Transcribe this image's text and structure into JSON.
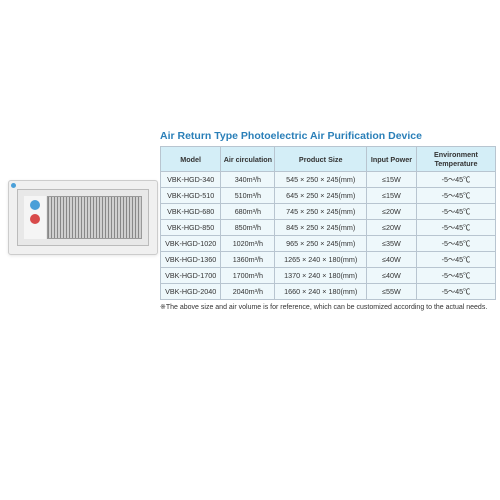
{
  "title": "Air Return Type Photoelectric Air Purification Device",
  "table": {
    "headers": {
      "model": "Model",
      "air": "Air circulation",
      "size": "Product Size",
      "power": "Input Power",
      "temp": "Environment Temperature"
    },
    "rows": [
      {
        "model": "VBK-HGD-340",
        "air": "340m³/h",
        "size": "545 × 250 × 245(mm)",
        "power": "≤15W",
        "temp": "-5～45℃"
      },
      {
        "model": "VBK-HGD-510",
        "air": "510m³/h",
        "size": "645 × 250 × 245(mm)",
        "power": "≤15W",
        "temp": "-5～45℃"
      },
      {
        "model": "VBK-HGD-680",
        "air": "680m³/h",
        "size": "745 × 250 × 245(mm)",
        "power": "≤20W",
        "temp": "-5～45℃"
      },
      {
        "model": "VBK-HGD-850",
        "air": "850m³/h",
        "size": "845 × 250 × 245(mm)",
        "power": "≤20W",
        "temp": "-5～45℃"
      },
      {
        "model": "VBK-HGD-1020",
        "air": "1020m³/h",
        "size": "965 × 250 × 245(mm)",
        "power": "≤35W",
        "temp": "-5～45℃"
      },
      {
        "model": "VBK-HGD-1360",
        "air": "1360m³/h",
        "size": "1265 × 240 × 180(mm)",
        "power": "≤40W",
        "temp": "-5～45℃"
      },
      {
        "model": "VBK-HGD-1700",
        "air": "1700m³/h",
        "size": "1370 × 240 × 180(mm)",
        "power": "≤40W",
        "temp": "-5～45℃"
      },
      {
        "model": "VBK-HGD-2040",
        "air": "2040m³/h",
        "size": "1660 × 240 × 180(mm)",
        "power": "≤55W",
        "temp": "-5～45℃"
      }
    ]
  },
  "footnote": "※The above size and air volume is for reference, which can be customized according to the actual needs.",
  "colors": {
    "title": "#2a7fb8",
    "header_bg": "#d4eef7",
    "cell_bg": "#eef8fb",
    "border": "#b8c5d0"
  }
}
